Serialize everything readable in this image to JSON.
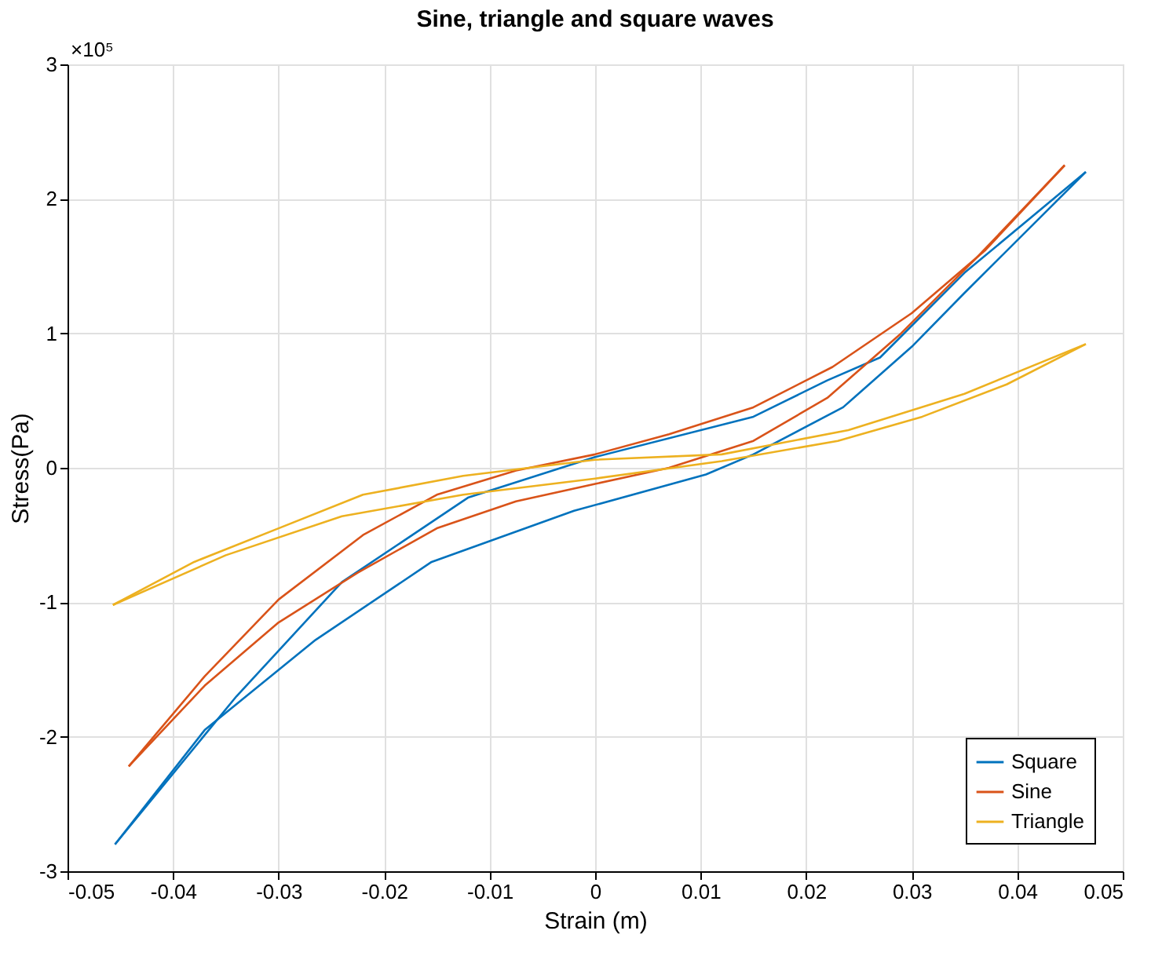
{
  "chart_data": {
    "type": "line",
    "title": "Sine, triangle and square waves",
    "xlabel": "Strain (m)",
    "ylabel": "Stress(Pa)",
    "annotations": [
      "×10⁵"
    ],
    "xlim": [
      -0.05,
      0.05
    ],
    "xticks": [
      -0.05,
      -0.04,
      -0.03,
      -0.02,
      -0.01,
      0,
      0.01,
      0.02,
      0.03,
      0.04,
      0.05
    ],
    "ylim": [
      -3,
      3
    ],
    "yticks": [
      -3,
      -2,
      -1,
      0,
      1,
      2,
      3
    ],
    "grid": true,
    "legend": "bottom right",
    "line_style": "solid",
    "marker": "none",
    "series": [
      {
        "name": "Square",
        "color": "#0072bd",
        "x": [
          -0.0455,
          -0.037,
          -0.0265,
          -0.0155,
          -0.002,
          0.0105,
          0.015,
          0.0235,
          0.03,
          0.035,
          0.0465,
          0.035,
          0.027,
          0.022,
          0.015,
          0.0,
          -0.012,
          -0.024,
          -0.034,
          -0.0455
        ],
        "values": [
          -2.8,
          -1.95,
          -1.28,
          -0.7,
          -0.32,
          -0.05,
          0.1,
          0.45,
          0.9,
          1.3,
          2.2,
          1.45,
          0.82,
          0.65,
          0.38,
          0.08,
          -0.22,
          -0.85,
          -1.7,
          -2.8
        ]
      },
      {
        "name": "Sine",
        "color": "#d95319",
        "x": [
          -0.0442,
          -0.037,
          -0.03,
          -0.0225,
          -0.015,
          -0.0075,
          0.0,
          0.007,
          0.015,
          0.022,
          0.029,
          0.036,
          0.0445,
          0.037,
          0.03,
          0.0225,
          0.015,
          0.007,
          0.0,
          -0.0075,
          -0.015,
          -0.022,
          -0.03,
          -0.037,
          -0.0442
        ],
        "values": [
          -2.22,
          -1.62,
          -1.15,
          -0.78,
          -0.45,
          -0.25,
          -0.12,
          0,
          0.2,
          0.52,
          1.0,
          1.55,
          2.25,
          1.62,
          1.15,
          0.75,
          0.45,
          0.25,
          0.1,
          -0.02,
          -0.2,
          -0.5,
          -0.98,
          -1.55,
          -2.22
        ]
      },
      {
        "name": "Triangle",
        "color": "#edb120",
        "x": [
          -0.0457,
          -0.035,
          -0.024,
          -0.0125,
          0.0,
          0.012,
          0.023,
          0.031,
          0.039,
          0.0465,
          0.035,
          0.024,
          0.012,
          0.0,
          -0.0125,
          -0.022,
          -0.03,
          -0.038,
          -0.0457
        ],
        "values": [
          -1.02,
          -0.65,
          -0.36,
          -0.2,
          -0.08,
          0.05,
          0.2,
          0.38,
          0.62,
          0.92,
          0.55,
          0.28,
          0.1,
          0.06,
          -0.06,
          -0.2,
          -0.45,
          -0.7,
          -1.02
        ]
      }
    ]
  }
}
